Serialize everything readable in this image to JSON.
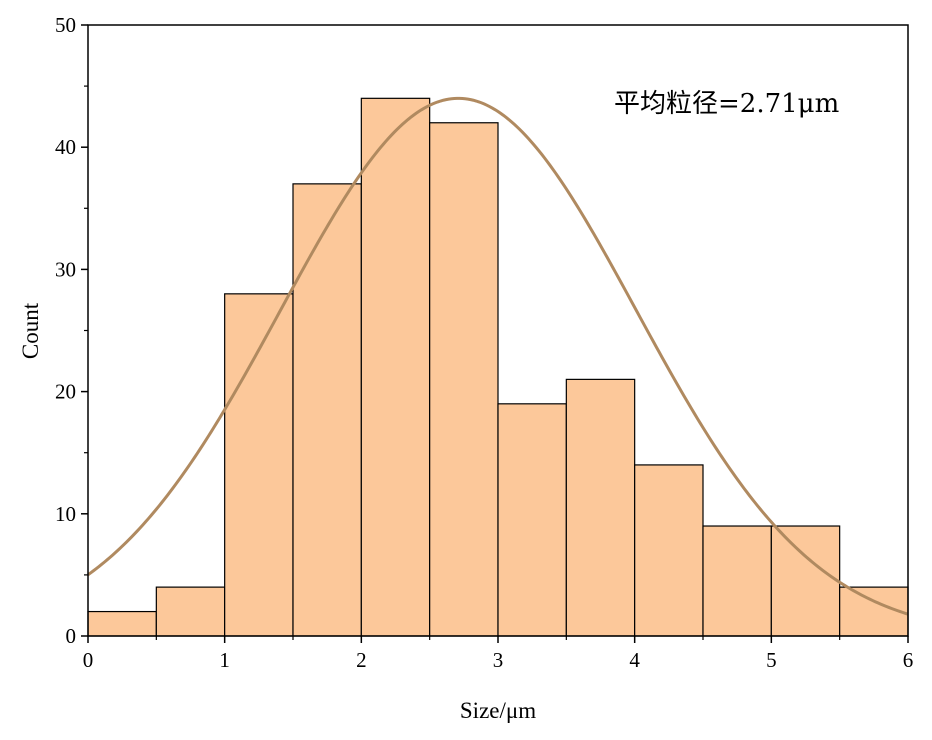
{
  "chart_data": {
    "type": "bar",
    "title": "",
    "xlabel": "Size/μm",
    "ylabel": "Count",
    "xlim": [
      0,
      6
    ],
    "ylim": [
      0,
      50
    ],
    "x_ticks": [
      "0",
      "1",
      "2",
      "3",
      "4",
      "5",
      "6"
    ],
    "y_ticks": [
      "0",
      "10",
      "20",
      "30",
      "40",
      "50"
    ],
    "bin_width": 0.5,
    "bins": [
      {
        "start": 0.0,
        "end": 0.5,
        "count": 2
      },
      {
        "start": 0.5,
        "end": 1.0,
        "count": 4
      },
      {
        "start": 1.0,
        "end": 1.5,
        "count": 28
      },
      {
        "start": 1.5,
        "end": 2.0,
        "count": 37
      },
      {
        "start": 2.0,
        "end": 2.5,
        "count": 44
      },
      {
        "start": 2.5,
        "end": 3.0,
        "count": 42
      },
      {
        "start": 3.0,
        "end": 3.5,
        "count": 19
      },
      {
        "start": 3.5,
        "end": 4.0,
        "count": 21
      },
      {
        "start": 4.0,
        "end": 4.5,
        "count": 14
      },
      {
        "start": 4.5,
        "end": 5.0,
        "count": 9
      },
      {
        "start": 5.0,
        "end": 5.5,
        "count": 9
      },
      {
        "start": 5.5,
        "end": 6.0,
        "count": 4
      }
    ],
    "fit_curve": {
      "type": "gaussian",
      "mean": 2.71,
      "peak": 44,
      "sigma": 1.3
    },
    "annotation": "平均粒径=2.71μm",
    "grid": false,
    "colors": {
      "bar_fill": "#FCC89A",
      "bar_stroke": "#000000",
      "curve": "#B08A60",
      "axis": "#000000"
    }
  }
}
